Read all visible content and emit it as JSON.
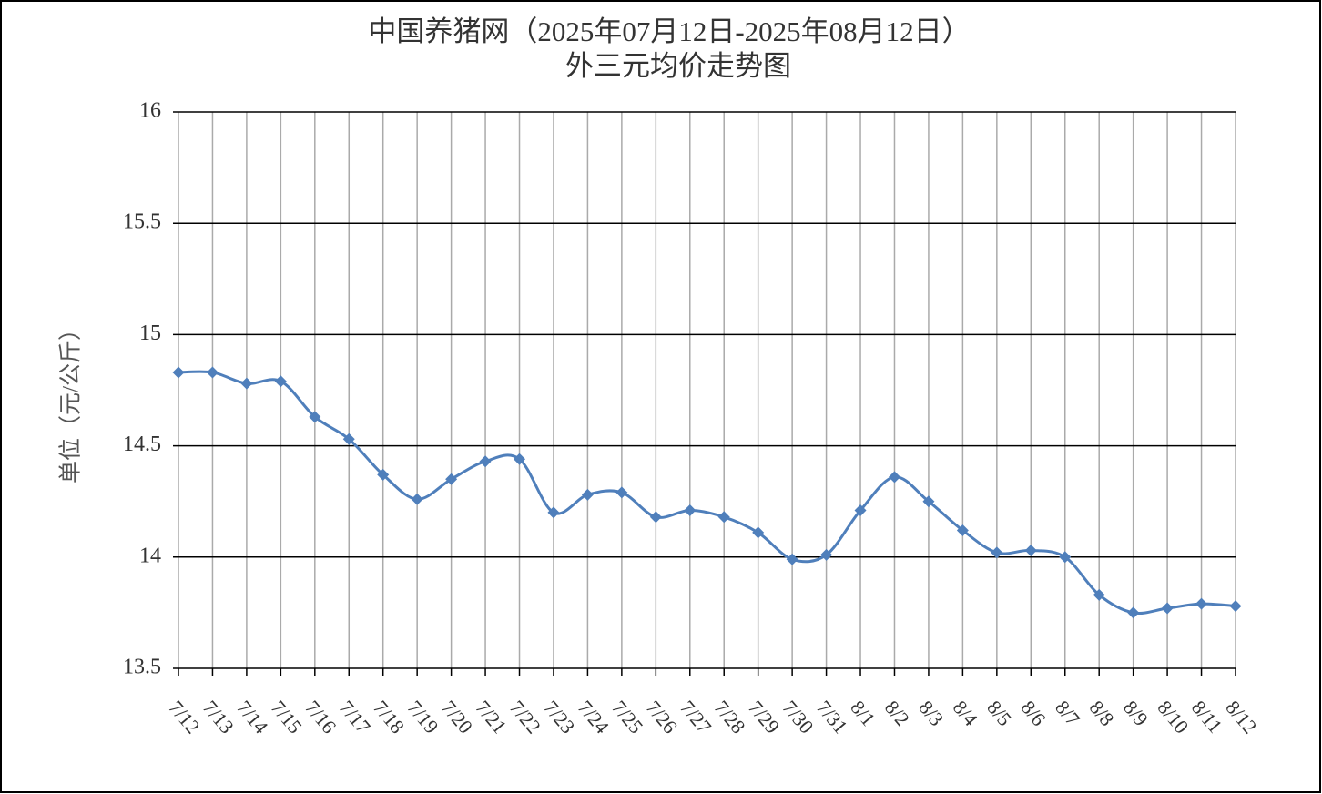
{
  "chart_data": {
    "type": "line",
    "title": "中国养猪网（2025年07月12日-2025年08月12日）",
    "subtitle": "外三元均价走势图",
    "y_label": "单位（元/公斤）",
    "categories": [
      "7/12",
      "7/13",
      "7/14",
      "7/15",
      "7/16",
      "7/17",
      "7/18",
      "7/19",
      "7/20",
      "7/21",
      "7/22",
      "7/23",
      "7/24",
      "7/25",
      "7/26",
      "7/27",
      "7/28",
      "7/29",
      "7/30",
      "7/31",
      "8/1",
      "8/2",
      "8/3",
      "8/4",
      "8/5",
      "8/6",
      "8/7",
      "8/8",
      "8/9",
      "8/10",
      "8/11",
      "8/12"
    ],
    "series": [
      {
        "name": "外三元均价",
        "color": "#4f7fbb",
        "values": [
          14.83,
          14.83,
          14.78,
          14.79,
          14.63,
          14.53,
          14.37,
          14.26,
          14.35,
          14.43,
          14.44,
          14.2,
          14.28,
          14.29,
          14.18,
          14.21,
          14.18,
          14.11,
          13.99,
          14.01,
          14.21,
          14.36,
          14.25,
          14.12,
          14.02,
          14.03,
          14.0,
          13.83,
          13.75,
          13.77,
          13.79,
          13.78
        ]
      }
    ],
    "ylim": [
      13.5,
      16
    ],
    "yticks": [
      13.5,
      14,
      14.5,
      15,
      15.5,
      16
    ],
    "grid": true,
    "smooth": true
  }
}
